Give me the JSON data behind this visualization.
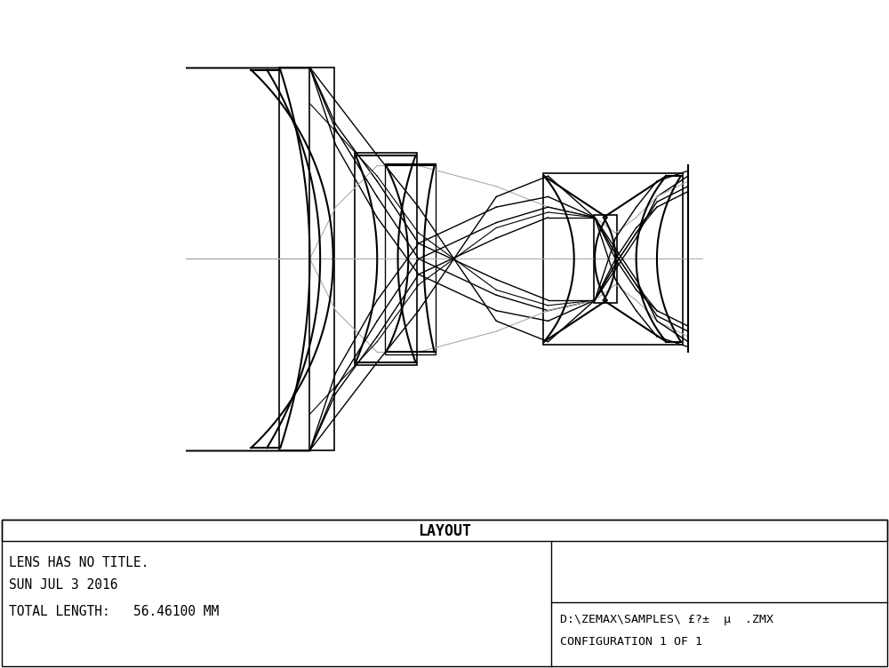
{
  "title": "LAYOUT",
  "info_line1": "LENS HAS NO TITLE.",
  "info_line2": "SUN JUL 3 2016",
  "info_line3": "TOTAL LENGTH:   56.46100 MM",
  "info_right1": "D:\\ZEMAX\\SAMPLES\\ £?±  µ  .ZMX",
  "info_right2": "CONFIGURATION 1 OF 1",
  "bg_color": "#ffffff",
  "line_color": "#000000",
  "gray_line_color": "#aaaaaa",
  "fig_width": 10.0,
  "fig_height": 7.52
}
